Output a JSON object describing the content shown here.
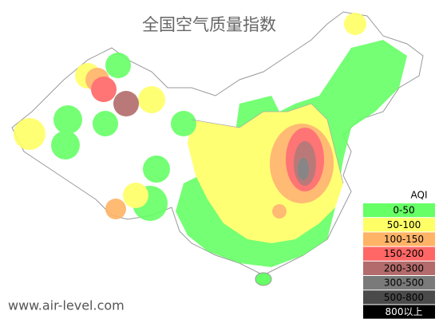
{
  "title": "全国空气质量指数",
  "watermark": "www.air-level.com",
  "legend": {
    "title": "AQI",
    "items": [
      {
        "label": "0-50",
        "color": "#66ff66"
      },
      {
        "label": "50-100",
        "color": "#ffff66"
      },
      {
        "label": "100-150",
        "color": "#ffb366"
      },
      {
        "label": "150-200",
        "color": "#ff6666"
      },
      {
        "label": "200-300",
        "color": "#b36b6b"
      },
      {
        "label": "300-500",
        "color": "#7a7a7a"
      },
      {
        "label": "500-800",
        "color": "#4a4a4a"
      },
      {
        "label": "800以上",
        "color": "#000000"
      }
    ]
  }
}
